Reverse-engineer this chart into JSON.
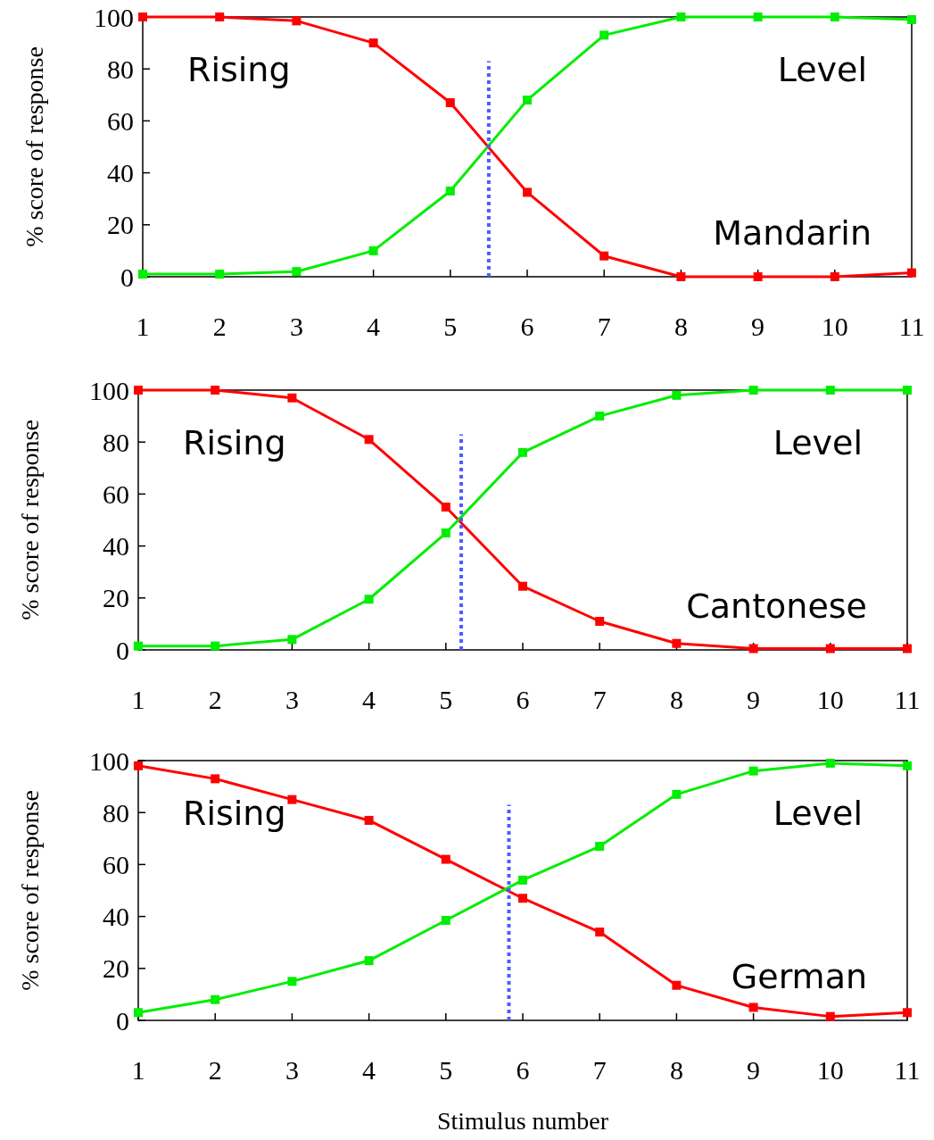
{
  "chart_data": [
    {
      "type": "line",
      "ylabel": "% score of response",
      "x": [
        1,
        2,
        3,
        4,
        5,
        6,
        7,
        8,
        9,
        10,
        11
      ],
      "xlim": [
        1,
        11
      ],
      "xticks": [
        1,
        2,
        3,
        4,
        5,
        6,
        7,
        8,
        9,
        10,
        11
      ],
      "ylim": [
        0,
        100
      ],
      "yticks": [
        0,
        20,
        40,
        60,
        80,
        100
      ],
      "marker": "square",
      "line_style": "solid",
      "grid": false,
      "series": [
        {
          "color": "#ff0000",
          "values": [
            100,
            100,
            98.5,
            90,
            67,
            32.5,
            8,
            0,
            0,
            0,
            1.5
          ]
        },
        {
          "color": "#00ee00",
          "values": [
            1,
            1,
            2,
            10,
            33,
            68,
            93,
            100,
            100,
            100,
            99
          ]
        }
      ],
      "ref_lines": [
        {
          "axis": "x",
          "value": 5.5,
          "color": "#4d5cff",
          "line_style": "dotted"
        }
      ],
      "annotations": [
        "Rising",
        "Level",
        "Mandarin"
      ]
    },
    {
      "type": "line",
      "ylabel": "% score of response",
      "x": [
        1,
        2,
        3,
        4,
        5,
        6,
        7,
        8,
        9,
        10,
        11
      ],
      "xlim": [
        1,
        11
      ],
      "xticks": [
        1,
        2,
        3,
        4,
        5,
        6,
        7,
        8,
        9,
        10,
        11
      ],
      "ylim": [
        0,
        100
      ],
      "yticks": [
        0,
        20,
        40,
        60,
        80,
        100
      ],
      "marker": "square",
      "line_style": "solid",
      "grid": false,
      "series": [
        {
          "color": "#ff0000",
          "values": [
            100,
            100,
            97,
            81,
            55,
            24.5,
            11,
            2.5,
            0.5,
            0.5,
            0.5
          ]
        },
        {
          "color": "#00ee00",
          "values": [
            1.5,
            1.5,
            4,
            19.5,
            45,
            76,
            90,
            98,
            100,
            100,
            100
          ]
        }
      ],
      "ref_lines": [
        {
          "axis": "x",
          "value": 5.2,
          "color": "#4d5cff",
          "line_style": "dotted"
        }
      ],
      "annotations": [
        "Rising",
        "Level",
        "Cantonese"
      ]
    },
    {
      "type": "line",
      "xlabel": "Stimulus number",
      "ylabel": "% score of response",
      "x": [
        1,
        2,
        3,
        4,
        5,
        6,
        7,
        8,
        9,
        10,
        11
      ],
      "xlim": [
        1,
        11
      ],
      "xticks": [
        1,
        2,
        3,
        4,
        5,
        6,
        7,
        8,
        9,
        10,
        11
      ],
      "ylim": [
        0,
        100
      ],
      "yticks": [
        0,
        20,
        40,
        60,
        80,
        100
      ],
      "marker": "square",
      "line_style": "solid",
      "grid": false,
      "series": [
        {
          "color": "#ff0000",
          "values": [
            98,
            93,
            85,
            77,
            62,
            47,
            34,
            13.5,
            5,
            1.5,
            3
          ]
        },
        {
          "color": "#00ee00",
          "values": [
            3,
            8,
            15,
            23,
            38.5,
            54,
            67,
            87,
            96,
            99,
            98
          ]
        }
      ],
      "ref_lines": [
        {
          "axis": "x",
          "value": 5.82,
          "color": "#4d5cff",
          "line_style": "dotted"
        }
      ],
      "annotations": [
        "Rising",
        "Level",
        "German"
      ]
    }
  ]
}
